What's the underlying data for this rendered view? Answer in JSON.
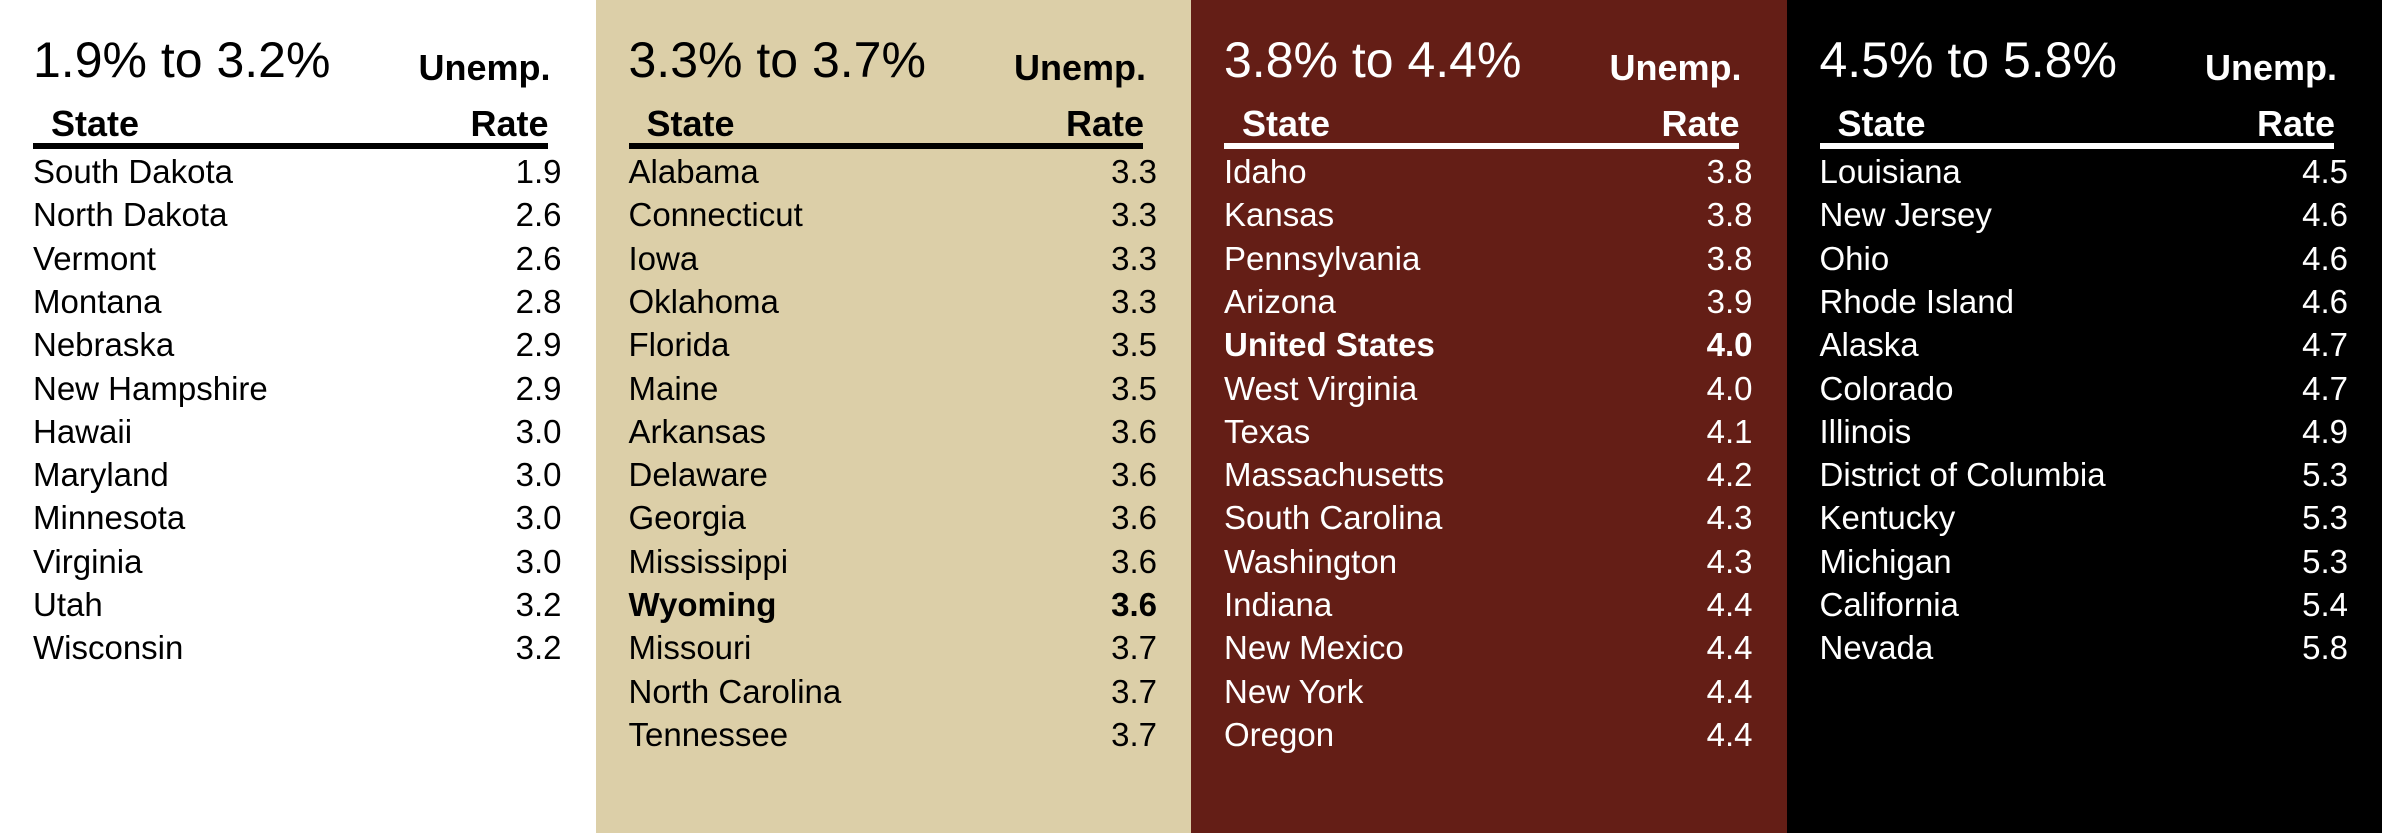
{
  "chart_data": {
    "type": "table",
    "panels": [
      {
        "range": "1.9% to 3.2%",
        "col_unemp": "Unemp.",
        "col_state": "State",
        "col_rate": "Rate",
        "bg": "#ffffff",
        "fg": "#000000",
        "rows": [
          {
            "state": "South Dakota",
            "rate": "1.9"
          },
          {
            "state": "North Dakota",
            "rate": "2.6"
          },
          {
            "state": "Vermont",
            "rate": "2.6"
          },
          {
            "state": "Montana",
            "rate": "2.8"
          },
          {
            "state": "Nebraska",
            "rate": "2.9"
          },
          {
            "state": "New Hampshire",
            "rate": "2.9"
          },
          {
            "state": "Hawaii",
            "rate": "3.0"
          },
          {
            "state": "Maryland",
            "rate": "3.0"
          },
          {
            "state": "Minnesota",
            "rate": "3.0"
          },
          {
            "state": "Virginia",
            "rate": "3.0"
          },
          {
            "state": "Utah",
            "rate": "3.2"
          },
          {
            "state": "Wisconsin",
            "rate": "3.2"
          }
        ]
      },
      {
        "range": "3.3% to 3.7%",
        "col_unemp": "Unemp.",
        "col_state": "State",
        "col_rate": "Rate",
        "bg": "#dccfa8",
        "fg": "#000000",
        "rows": [
          {
            "state": "Alabama",
            "rate": "3.3"
          },
          {
            "state": "Connecticut",
            "rate": "3.3"
          },
          {
            "state": "Iowa",
            "rate": "3.3"
          },
          {
            "state": "Oklahoma",
            "rate": "3.3"
          },
          {
            "state": "Florida",
            "rate": "3.5"
          },
          {
            "state": "Maine",
            "rate": "3.5"
          },
          {
            "state": "Arkansas",
            "rate": "3.6"
          },
          {
            "state": "Delaware",
            "rate": "3.6"
          },
          {
            "state": "Georgia",
            "rate": "3.6"
          },
          {
            "state": "Mississippi",
            "rate": "3.6"
          },
          {
            "state": "Wyoming",
            "rate": "3.6",
            "bold": true
          },
          {
            "state": "Missouri",
            "rate": "3.7"
          },
          {
            "state": "North Carolina",
            "rate": "3.7"
          },
          {
            "state": "Tennessee",
            "rate": "3.7"
          }
        ]
      },
      {
        "range": "3.8% to 4.4%",
        "col_unemp": "Unemp.",
        "col_state": "State",
        "col_rate": "Rate",
        "bg": "#641e16",
        "fg": "#ffffff",
        "rows": [
          {
            "state": "Idaho",
            "rate": "3.8"
          },
          {
            "state": "Kansas",
            "rate": "3.8"
          },
          {
            "state": "Pennsylvania",
            "rate": "3.8"
          },
          {
            "state": "Arizona",
            "rate": "3.9"
          },
          {
            "state": "United States",
            "rate": "4.0",
            "bold": true
          },
          {
            "state": "West Virginia",
            "rate": "4.0"
          },
          {
            "state": "Texas",
            "rate": "4.1"
          },
          {
            "state": "Massachusetts",
            "rate": "4.2"
          },
          {
            "state": "South Carolina",
            "rate": "4.3"
          },
          {
            "state": "Washington",
            "rate": "4.3"
          },
          {
            "state": "Indiana",
            "rate": "4.4"
          },
          {
            "state": "New Mexico",
            "rate": "4.4"
          },
          {
            "state": "New York",
            "rate": "4.4"
          },
          {
            "state": "Oregon",
            "rate": "4.4"
          }
        ]
      },
      {
        "range": "4.5% to 5.8%",
        "col_unemp": "Unemp.",
        "col_state": "State",
        "col_rate": "Rate",
        "bg": "#000000",
        "fg": "#ffffff",
        "rows": [
          {
            "state": "Louisiana",
            "rate": "4.5"
          },
          {
            "state": "New Jersey",
            "rate": "4.6"
          },
          {
            "state": "Ohio",
            "rate": "4.6"
          },
          {
            "state": "Rhode Island",
            "rate": "4.6"
          },
          {
            "state": "Alaska",
            "rate": "4.7"
          },
          {
            "state": "Colorado",
            "rate": "4.7"
          },
          {
            "state": "Illinois",
            "rate": "4.9"
          },
          {
            "state": "District of Columbia",
            "rate": "5.3"
          },
          {
            "state": "Kentucky",
            "rate": "5.3"
          },
          {
            "state": "Michigan",
            "rate": "5.3"
          },
          {
            "state": "California",
            "rate": "5.4"
          },
          {
            "state": "Nevada",
            "rate": "5.8"
          }
        ]
      }
    ]
  }
}
